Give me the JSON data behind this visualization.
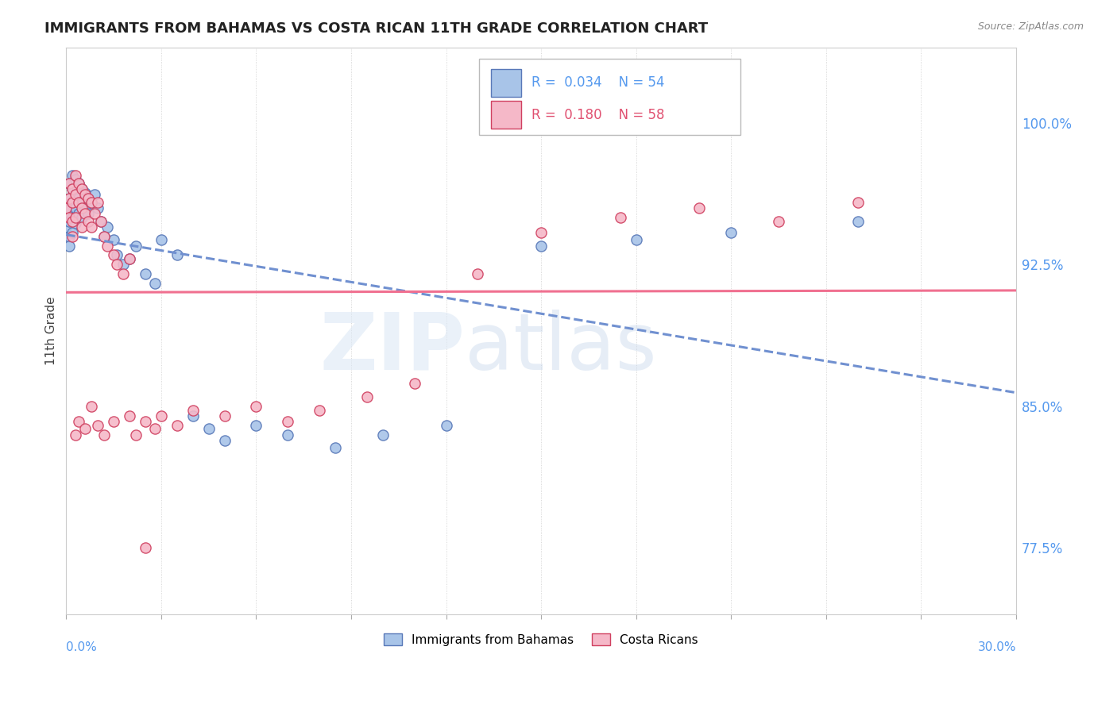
{
  "title": "IMMIGRANTS FROM BAHAMAS VS COSTA RICAN 11TH GRADE CORRELATION CHART",
  "source": "Source: ZipAtlas.com",
  "ylabel": "11th Grade",
  "ylabel_ticks": [
    "77.5%",
    "85.0%",
    "92.5%",
    "100.0%"
  ],
  "ylabel_values": [
    0.775,
    0.85,
    0.925,
    1.0
  ],
  "xmin": 0.0,
  "xmax": 0.3,
  "ymin": 0.74,
  "ymax": 1.04,
  "legend_r1": "R = 0.034",
  "legend_n1": "N = 54",
  "legend_r2": "R = 0.180",
  "legend_n2": "N = 58",
  "color_bahamas": "#a8c4e8",
  "color_costa": "#f5b8c8",
  "color_bahamas_line": "#7090d0",
  "color_costa_line": "#f07090",
  "color_bahamas_dark": "#5878b8",
  "color_costa_dark": "#d04060",
  "bahamas_x": [
    0.0,
    0.0,
    0.001,
    0.001,
    0.001,
    0.001,
    0.001,
    0.001,
    0.002,
    0.002,
    0.002,
    0.002,
    0.002,
    0.003,
    0.003,
    0.003,
    0.003,
    0.004,
    0.004,
    0.004,
    0.005,
    0.005,
    0.005,
    0.006,
    0.006,
    0.007,
    0.007,
    0.008,
    0.009,
    0.01,
    0.011,
    0.012,
    0.013,
    0.015,
    0.016,
    0.018,
    0.02,
    0.022,
    0.025,
    0.028,
    0.03,
    0.035,
    0.04,
    0.045,
    0.05,
    0.06,
    0.07,
    0.085,
    0.1,
    0.12,
    0.15,
    0.18,
    0.21,
    0.25
  ],
  "bahamas_y": [
    0.95,
    0.945,
    0.968,
    0.96,
    0.955,
    0.948,
    0.94,
    0.935,
    0.972,
    0.965,
    0.958,
    0.95,
    0.942,
    0.97,
    0.962,
    0.955,
    0.947,
    0.968,
    0.96,
    0.952,
    0.965,
    0.958,
    0.95,
    0.963,
    0.955,
    0.96,
    0.952,
    0.958,
    0.962,
    0.955,
    0.948,
    0.94,
    0.945,
    0.938,
    0.93,
    0.925,
    0.928,
    0.935,
    0.92,
    0.915,
    0.938,
    0.93,
    0.845,
    0.838,
    0.832,
    0.84,
    0.835,
    0.828,
    0.835,
    0.84,
    0.935,
    0.938,
    0.942,
    0.948
  ],
  "costa_x": [
    0.0,
    0.001,
    0.001,
    0.001,
    0.002,
    0.002,
    0.002,
    0.002,
    0.003,
    0.003,
    0.003,
    0.004,
    0.004,
    0.005,
    0.005,
    0.005,
    0.006,
    0.006,
    0.007,
    0.007,
    0.008,
    0.008,
    0.009,
    0.01,
    0.011,
    0.012,
    0.013,
    0.015,
    0.016,
    0.018,
    0.02,
    0.022,
    0.025,
    0.028,
    0.03,
    0.035,
    0.04,
    0.05,
    0.06,
    0.07,
    0.08,
    0.095,
    0.11,
    0.13,
    0.15,
    0.175,
    0.2,
    0.225,
    0.25,
    0.003,
    0.004,
    0.006,
    0.008,
    0.01,
    0.012,
    0.015,
    0.02,
    0.025
  ],
  "costa_y": [
    0.955,
    0.968,
    0.96,
    0.95,
    0.965,
    0.958,
    0.948,
    0.94,
    0.972,
    0.962,
    0.95,
    0.968,
    0.958,
    0.965,
    0.955,
    0.945,
    0.962,
    0.952,
    0.96,
    0.948,
    0.958,
    0.945,
    0.952,
    0.958,
    0.948,
    0.94,
    0.935,
    0.93,
    0.925,
    0.92,
    0.928,
    0.835,
    0.842,
    0.838,
    0.845,
    0.84,
    0.848,
    0.845,
    0.85,
    0.842,
    0.848,
    0.855,
    0.862,
    0.92,
    0.942,
    0.95,
    0.955,
    0.948,
    0.958,
    0.835,
    0.842,
    0.838,
    0.85,
    0.84,
    0.835,
    0.842,
    0.845,
    0.775
  ]
}
